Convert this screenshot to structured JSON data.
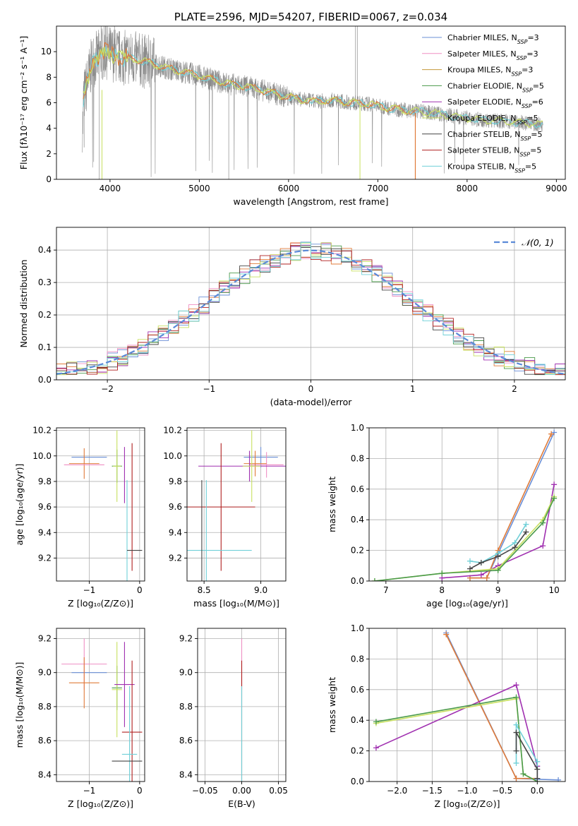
{
  "colors": {
    "Chabrier MILES": "#6a8fd6",
    "Salpeter MILES": "#ef8fc4",
    "Kroupa MILES": "#c59a3a",
    "Chabrier ELODIE": "#4a9a4a",
    "Salpeter ELODIE": "#a030b0",
    "Kroupa ELODIE": "#c8e060",
    "Chabrier STELIB": "#444444",
    "Salpeter STELIB": "#b02020",
    "Kroupa STELIB": "#70d0d8",
    "orange": "#e07b39",
    "data": "#8c8c8c"
  },
  "chart_data": [
    {
      "id": "spectrum",
      "type": "line",
      "title": "PLATE=2596, MJD=54207, FIBERID=0067, z=0.034",
      "xlabel": "wavelength [Angstrom, rest frame]",
      "ylabel": "Flux [fλ10⁻¹⁷ erg cm⁻² s⁻¹ A⁻¹]",
      "xlim": [
        3400,
        9100
      ],
      "ylim": [
        0,
        12
      ],
      "xticks": [
        "4000",
        "5000",
        "6000",
        "7000",
        "8000",
        "9000"
      ],
      "yticks": [
        "0",
        "2",
        "4",
        "6",
        "8",
        "10"
      ],
      "grid": false,
      "legend_position": "top-right",
      "legend": [
        {
          "label": "Chabrier MILES, N",
          "sub": "SSP",
          "tail": "=3"
        },
        {
          "label": "Salpeter MILES, N",
          "sub": "SSP",
          "tail": "=3"
        },
        {
          "label": "Kroupa MILES, N",
          "sub": "SSP",
          "tail": "=3"
        },
        {
          "label": "Chabrier ELODIE, N",
          "sub": "SSP",
          "tail": "=5"
        },
        {
          "label": "Salpeter ELODIE, N",
          "sub": "SSP",
          "tail": "=6"
        },
        {
          "label": "Kroupa ELODIE, N",
          "sub": "SSP",
          "tail": "=5"
        },
        {
          "label": "Chabrier STELIB, N",
          "sub": "SSP",
          "tail": "=5"
        },
        {
          "label": "Salpeter STELIB, N",
          "sub": "SSP",
          "tail": "=5"
        },
        {
          "label": "Kroupa STELIB, N",
          "sub": "SSP",
          "tail": "=5"
        }
      ],
      "spectrum_trend": {
        "x": [
          3700,
          3800,
          3950,
          4100,
          4300,
          4500,
          4700,
          4900,
          5100,
          5300,
          5500,
          5700,
          5900,
          6100,
          6300,
          6500,
          6700,
          6900,
          7100,
          7300,
          7500,
          7700,
          7900,
          8100,
          8300,
          8500,
          8700,
          8850
        ],
        "y": [
          6.2,
          9.2,
          10.0,
          9.6,
          9.4,
          9.0,
          8.6,
          8.3,
          7.9,
          7.5,
          7.3,
          7.0,
          6.6,
          6.3,
          6.1,
          6.2,
          6.0,
          5.9,
          5.6,
          5.4,
          5.3,
          5.1,
          4.9,
          4.7,
          4.6,
          4.5,
          4.4,
          4.3
        ]
      }
    },
    {
      "id": "residuals",
      "type": "histogram",
      "xlabel": "(data-model)/error",
      "ylabel": "Normed distribution",
      "xlim": [
        -2.5,
        2.5
      ],
      "ylim": [
        0,
        0.47
      ],
      "xticks": [
        "−2",
        "−1",
        "0",
        "1",
        "2"
      ],
      "yticks": [
        "0.0",
        "0.1",
        "0.2",
        "0.3",
        "0.4"
      ],
      "grid": true,
      "legend_position": "top-right",
      "legend": [
        "𝒩(0, 1)"
      ]
    },
    {
      "id": "age_vs_Z",
      "type": "errorbar",
      "xlabel": "Z [log₁₀(Z/Z⊙)]",
      "ylabel": "age  [log₁₀(age/yr)]",
      "xlim": [
        -1.65,
        0.1
      ],
      "ylim": [
        9.02,
        10.22
      ],
      "xticks": [
        "−1",
        "0"
      ],
      "yticks": [
        "9.2",
        "9.4",
        "9.6",
        "9.8",
        "10.0",
        "10.2"
      ],
      "grid": true,
      "points": [
        {
          "model": "Chabrier MILES",
          "x": -1.0,
          "y": 9.99,
          "xe": 0.35,
          "ye": 0.0
        },
        {
          "model": "orange",
          "x": -1.1,
          "y": 9.94,
          "xe": 0.3,
          "ye": 0.12
        },
        {
          "model": "Salpeter MILES",
          "x": -1.1,
          "y": 9.93,
          "xe": 0.4,
          "ye": 0.0
        },
        {
          "model": "Chabrier ELODIE",
          "x": -0.45,
          "y": 9.92,
          "xe": 0.1,
          "ye": 0.13
        },
        {
          "model": "Kroupa ELODIE",
          "x": -0.45,
          "y": 9.92,
          "xe": 0.08,
          "ye": 0.28
        },
        {
          "model": "Salpeter ELODIE",
          "x": -0.3,
          "y": 9.85,
          "xe": 0.0,
          "ye": 0.22
        },
        {
          "model": "Salpeter STELIB",
          "x": -0.15,
          "y": 9.6,
          "xe": 0.0,
          "ye": 0.5
        },
        {
          "model": "Kroupa STELIB",
          "x": -0.25,
          "y": 9.26,
          "xe": 0.0,
          "ye": 0.55
        },
        {
          "model": "Chabrier STELIB",
          "x": -0.1,
          "y": 9.26,
          "xe": 0.15,
          "ye": 0.0
        }
      ]
    },
    {
      "id": "age_vs_mass",
      "type": "errorbar",
      "xlabel": "mass [log₁₀(M/M⊙)]",
      "ylabel": "",
      "xlim": [
        8.35,
        9.22
      ],
      "ylim": [
        9.02,
        10.22
      ],
      "xticks": [
        "8.5",
        "9.0"
      ],
      "yticks": [
        "9.2",
        "9.4",
        "9.6",
        "9.8",
        "10.0",
        "10.2"
      ],
      "grid": true,
      "points": [
        {
          "model": "Chabrier MILES",
          "x": 9.0,
          "y": 9.99,
          "xe": 0.15,
          "ye": 0.08
        },
        {
          "model": "Salpeter MILES",
          "x": 9.05,
          "y": 9.93,
          "xe": 0.15,
          "ye": 0.1
        },
        {
          "model": "orange",
          "x": 8.95,
          "y": 9.94,
          "xe": 0.1,
          "ye": 0.1
        },
        {
          "model": "Salpeter ELODIE",
          "x": 8.9,
          "y": 9.92,
          "xe": 0.45,
          "ye": 0.12
        },
        {
          "model": "Kroupa ELODIE",
          "x": 8.92,
          "y": 9.92,
          "xe": 0.08,
          "ye": 0.28
        },
        {
          "model": "Salpeter STELIB",
          "x": 8.65,
          "y": 9.6,
          "xe": 0.3,
          "ye": 0.5
        },
        {
          "model": "Kroupa STELIB",
          "x": 8.52,
          "y": 9.26,
          "xe": 0.4,
          "ye": 0.55
        },
        {
          "model": "Chabrier STELIB",
          "x": 8.48,
          "y": 9.26,
          "xe": 0.0,
          "ye": 0.55
        }
      ]
    },
    {
      "id": "weight_vs_age",
      "type": "line",
      "xlabel": "age  [log₁₀(age/yr)]",
      "ylabel": "mass weight",
      "xlim": [
        6.7,
        10.2
      ],
      "ylim": [
        0,
        1.0
      ],
      "xticks": [
        "7",
        "8",
        "9",
        "10"
      ],
      "yticks": [
        "0.0",
        "0.2",
        "0.4",
        "0.6",
        "0.8",
        "1.0"
      ],
      "grid": true,
      "series": [
        {
          "model": "Chabrier MILES",
          "x": [
            8.5,
            8.8,
            10.0
          ],
          "y": [
            0.02,
            0.02,
            0.97
          ]
        },
        {
          "model": "orange",
          "x": [
            8.5,
            8.8,
            9.0,
            9.95
          ],
          "y": [
            0.02,
            0.02,
            0.2,
            0.96
          ]
        },
        {
          "model": "Salpeter ELODIE",
          "x": [
            8.0,
            8.7,
            9.0,
            9.8,
            10.0
          ],
          "y": [
            0.02,
            0.04,
            0.1,
            0.23,
            0.63
          ]
        },
        {
          "model": "Kroupa ELODIE",
          "x": [
            6.8,
            8.0,
            9.0,
            9.8,
            10.0
          ],
          "y": [
            0.0,
            0.05,
            0.08,
            0.4,
            0.55
          ]
        },
        {
          "model": "Chabrier ELODIE",
          "x": [
            6.8,
            8.0,
            9.0,
            9.8,
            10.0
          ],
          "y": [
            0.0,
            0.05,
            0.07,
            0.38,
            0.54
          ]
        },
        {
          "model": "Kroupa STELIB",
          "x": [
            8.5,
            8.7,
            9.0,
            9.3,
            9.5
          ],
          "y": [
            0.13,
            0.12,
            0.18,
            0.25,
            0.37
          ]
        },
        {
          "model": "Chabrier STELIB",
          "x": [
            8.5,
            8.7,
            9.0,
            9.3,
            9.5
          ],
          "y": [
            0.08,
            0.12,
            0.16,
            0.22,
            0.32
          ]
        }
      ]
    },
    {
      "id": "mass_vs_Z",
      "type": "errorbar",
      "xlabel": "Z [log₁₀(Z/Z⊙)]",
      "ylabel": "mass [log₁₀(M/M⊙)]",
      "xlim": [
        -1.65,
        0.1
      ],
      "ylim": [
        8.36,
        9.26
      ],
      "xticks": [
        "−1",
        "0"
      ],
      "yticks": [
        "8.4",
        "8.6",
        "8.8",
        "9.0",
        "9.2"
      ],
      "grid": true,
      "points": [
        {
          "model": "Salpeter MILES",
          "x": -1.1,
          "y": 9.05,
          "xe": 0.45,
          "ye": 0.15
        },
        {
          "model": "Chabrier MILES",
          "x": -1.0,
          "y": 9.0,
          "xe": 0.35,
          "ye": 0.0
        },
        {
          "model": "orange",
          "x": -1.1,
          "y": 8.94,
          "xe": 0.3,
          "ye": 0.15
        },
        {
          "model": "Chabrier ELODIE",
          "x": -0.45,
          "y": 8.91,
          "xe": 0.1,
          "ye": 0.13
        },
        {
          "model": "Kroupa ELODIE",
          "x": -0.45,
          "y": 8.9,
          "xe": 0.1,
          "ye": 0.28
        },
        {
          "model": "Salpeter ELODIE",
          "x": -0.3,
          "y": 8.93,
          "xe": 0.2,
          "ye": 0.25
        },
        {
          "model": "Salpeter STELIB",
          "x": -0.15,
          "y": 8.65,
          "xe": 0.2,
          "ye": 0.42
        },
        {
          "model": "Kroupa STELIB",
          "x": -0.2,
          "y": 8.52,
          "xe": 0.15,
          "ye": 0.4
        },
        {
          "model": "Chabrier STELIB",
          "x": -0.25,
          "y": 8.48,
          "xe": 0.3,
          "ye": 0.0
        }
      ]
    },
    {
      "id": "mass_vs_EBV",
      "type": "errorbar",
      "xlabel": "E(B-V)",
      "ylabel": "",
      "xlim": [
        -0.06,
        0.06
      ],
      "ylim": [
        8.36,
        9.26
      ],
      "xticks": [
        "−0.05",
        "0.00",
        "0.05"
      ],
      "yticks": [
        "8.4",
        "8.6",
        "8.8",
        "9.0",
        "9.2"
      ],
      "grid": true,
      "points": [
        {
          "model": "Salpeter MILES",
          "x": 0.0,
          "y": 9.05,
          "xe": 0.0,
          "ye": 0.15
        },
        {
          "model": "Salpeter STELIB",
          "x": 0.0,
          "y": 8.65,
          "xe": 0.0,
          "ye": 0.42
        },
        {
          "model": "Kroupa STELIB",
          "x": 0.0,
          "y": 8.52,
          "xe": 0.0,
          "ye": 0.4
        }
      ]
    },
    {
      "id": "weight_vs_Z",
      "type": "line",
      "xlabel": "Z [log₁₀(Z/Z⊙)]",
      "ylabel": "mass weight",
      "xlim": [
        -2.4,
        0.4
      ],
      "ylim": [
        0,
        1.0
      ],
      "xticks": [
        "−2.0",
        "−1.5",
        "−1.0",
        "−0.5",
        "0.0"
      ],
      "yticks": [
        "0.0",
        "0.2",
        "0.4",
        "0.6",
        "0.8",
        "1.0"
      ],
      "grid": true,
      "series": [
        {
          "model": "Chabrier MILES",
          "x": [
            -1.3,
            -0.3,
            0.3
          ],
          "y": [
            0.97,
            0.02,
            0.01
          ]
        },
        {
          "model": "orange",
          "x": [
            -1.3,
            -0.3,
            0.0
          ],
          "y": [
            0.96,
            0.02,
            0.02
          ]
        },
        {
          "model": "Salpeter ELODIE",
          "x": [
            -2.3,
            -0.3,
            0.0,
            0.0
          ],
          "y": [
            0.22,
            0.63,
            0.1,
            0.02
          ]
        },
        {
          "model": "Kroupa ELODIE",
          "x": [
            -2.3,
            -0.3,
            -0.2,
            0.0
          ],
          "y": [
            0.38,
            0.54,
            0.05,
            0.0
          ]
        },
        {
          "model": "Chabrier ELODIE",
          "x": [
            -2.3,
            -0.3,
            -0.2,
            0.0
          ],
          "y": [
            0.39,
            0.55,
            0.05,
            0.0
          ]
        },
        {
          "model": "Kroupa STELIB",
          "x": [
            -0.3,
            -0.3,
            0.0,
            0.0
          ],
          "y": [
            0.12,
            0.37,
            0.13,
            0.02
          ]
        },
        {
          "model": "Chabrier STELIB",
          "x": [
            -0.3,
            -0.3,
            0.0,
            0.0
          ],
          "y": [
            0.2,
            0.32,
            0.08,
            0.02
          ]
        }
      ]
    }
  ]
}
